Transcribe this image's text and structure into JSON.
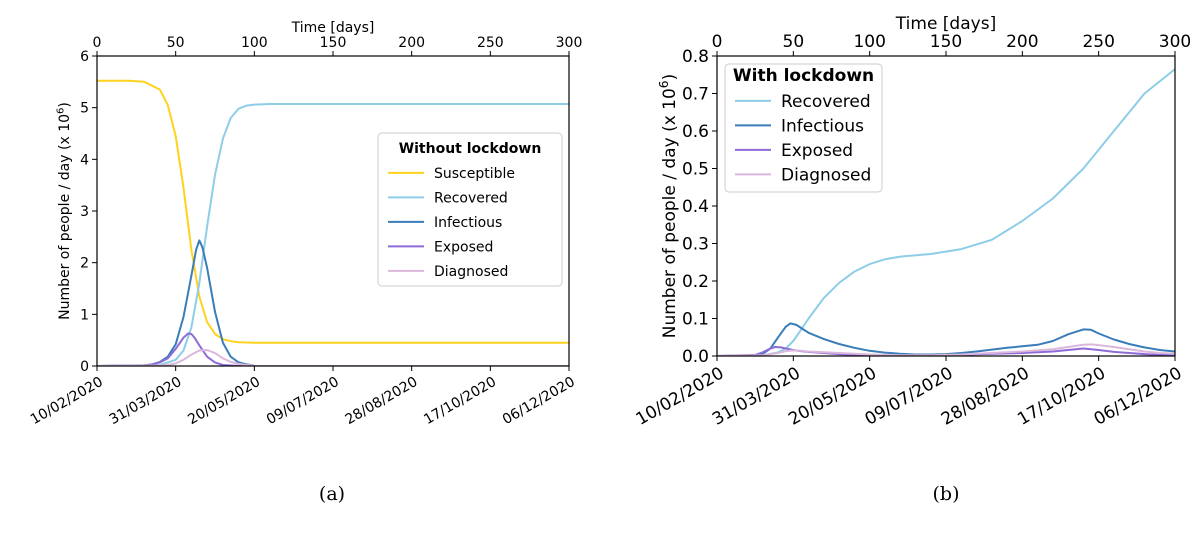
{
  "chart_data": [
    {
      "type": "line",
      "caption": "(a)",
      "top_xlabel": "Time [days]",
      "top_xticks": [
        0,
        50,
        100,
        150,
        200,
        250,
        300
      ],
      "xlim": [
        0,
        300
      ],
      "bottom_xticks": [
        {
          "day": 0,
          "label": "10/02/2020"
        },
        {
          "day": 50,
          "label": "31/03/2020"
        },
        {
          "day": 100,
          "label": "20/05/2020"
        },
        {
          "day": 150,
          "label": "09/07/2020"
        },
        {
          "day": 200,
          "label": "28/08/2020"
        },
        {
          "day": 250,
          "label": "17/10/2020"
        },
        {
          "day": 300,
          "label": "06/12/2020"
        }
      ],
      "ylabel": "Number of people / day (x 10",
      "ylabel_sup": "6",
      "ylabel_end": ")",
      "ylim": [
        0,
        6
      ],
      "yticks": [
        "0",
        "1",
        "2",
        "3",
        "4",
        "5",
        "6"
      ],
      "ytick_values": [
        0,
        1,
        2,
        3,
        4,
        5,
        6
      ],
      "legend": {
        "title": "Without lockdown",
        "placement": "center-right"
      },
      "series": [
        {
          "name": "Susceptible",
          "color": "#FFD21F",
          "x": [
            0,
            20,
            30,
            40,
            45,
            50,
            55,
            60,
            65,
            70,
            75,
            80,
            85,
            90,
            95,
            100,
            110,
            120,
            150,
            200,
            250,
            300
          ],
          "y": [
            5.52,
            5.52,
            5.5,
            5.35,
            5.05,
            4.45,
            3.45,
            2.25,
            1.35,
            0.85,
            0.62,
            0.52,
            0.48,
            0.46,
            0.455,
            0.45,
            0.45,
            0.45,
            0.45,
            0.45,
            0.45,
            0.45
          ]
        },
        {
          "name": "Recovered",
          "color": "#8ECDE8",
          "x": [
            0,
            40,
            50,
            55,
            60,
            65,
            70,
            75,
            80,
            85,
            90,
            95,
            100,
            110,
            120,
            150,
            200,
            250,
            300
          ],
          "y": [
            0,
            0.02,
            0.12,
            0.3,
            0.75,
            1.6,
            2.7,
            3.7,
            4.4,
            4.8,
            4.98,
            5.04,
            5.06,
            5.07,
            5.07,
            5.07,
            5.07,
            5.07,
            5.07
          ]
        },
        {
          "name": "Infectious",
          "color": "#3A7DB8",
          "x": [
            0,
            30,
            35,
            40,
            45,
            50,
            55,
            60,
            63,
            65,
            67,
            70,
            75,
            80,
            85,
            90,
            95,
            100,
            110,
            300
          ],
          "y": [
            0,
            0.01,
            0.03,
            0.08,
            0.18,
            0.42,
            0.95,
            1.75,
            2.25,
            2.43,
            2.3,
            1.9,
            1.05,
            0.45,
            0.18,
            0.07,
            0.03,
            0.01,
            0,
            0
          ]
        },
        {
          "name": "Exposed",
          "color": "#8E6BD9",
          "x": [
            0,
            30,
            35,
            40,
            45,
            50,
            55,
            58,
            60,
            62,
            65,
            70,
            75,
            80,
            85,
            90,
            100,
            300
          ],
          "y": [
            0,
            0.01,
            0.03,
            0.07,
            0.15,
            0.33,
            0.55,
            0.63,
            0.62,
            0.55,
            0.4,
            0.18,
            0.07,
            0.02,
            0.01,
            0,
            0,
            0
          ]
        },
        {
          "name": "Diagnosed",
          "color": "#DCB7DC",
          "x": [
            0,
            40,
            45,
            50,
            55,
            60,
            65,
            70,
            75,
            80,
            85,
            90,
            95,
            100,
            110,
            300
          ],
          "y": [
            0,
            0.01,
            0.02,
            0.05,
            0.12,
            0.22,
            0.3,
            0.31,
            0.25,
            0.15,
            0.08,
            0.04,
            0.02,
            0.01,
            0,
            0
          ]
        }
      ]
    },
    {
      "type": "line",
      "caption": "(b)",
      "top_xlabel": "Time [days]",
      "top_xticks": [
        0,
        50,
        100,
        150,
        200,
        250,
        300
      ],
      "xlim": [
        0,
        300
      ],
      "bottom_xticks": [
        {
          "day": 0,
          "label": "10/02/2020"
        },
        {
          "day": 50,
          "label": "31/03/2020"
        },
        {
          "day": 100,
          "label": "20/05/2020"
        },
        {
          "day": 150,
          "label": "09/07/2020"
        },
        {
          "day": 200,
          "label": "28/08/2020"
        },
        {
          "day": 250,
          "label": "17/10/2020"
        },
        {
          "day": 300,
          "label": "06/12/2020"
        }
      ],
      "ylabel": "Number of people / day (x 10",
      "ylabel_sup": "6",
      "ylabel_end": ")",
      "ylim": [
        0,
        0.8
      ],
      "yticks": [
        "0.0",
        "0.1",
        "0.2",
        "0.3",
        "0.4",
        "0.5",
        "0.6",
        "0.7",
        "0.8"
      ],
      "ytick_values": [
        0,
        0.1,
        0.2,
        0.3,
        0.4,
        0.5,
        0.6,
        0.7,
        0.8
      ],
      "legend": {
        "title": "With lockdown",
        "placement": "upper-left"
      },
      "series": [
        {
          "name": "Recovered",
          "color": "#8ECDE8",
          "x": [
            0,
            30,
            40,
            45,
            50,
            55,
            60,
            70,
            80,
            90,
            100,
            110,
            120,
            140,
            160,
            180,
            200,
            220,
            240,
            260,
            280,
            300
          ],
          "y": [
            0,
            0.002,
            0.01,
            0.02,
            0.04,
            0.07,
            0.1,
            0.155,
            0.195,
            0.225,
            0.245,
            0.258,
            0.265,
            0.272,
            0.285,
            0.31,
            0.36,
            0.42,
            0.5,
            0.6,
            0.7,
            0.765
          ]
        },
        {
          "name": "Infectious",
          "color": "#3A7DB8",
          "x": [
            0,
            25,
            30,
            35,
            40,
            45,
            48,
            52,
            55,
            60,
            70,
            80,
            90,
            100,
            110,
            120,
            130,
            140,
            150,
            160,
            170,
            180,
            190,
            200,
            210,
            220,
            230,
            240,
            245,
            250,
            260,
            270,
            280,
            290,
            300
          ],
          "y": [
            0,
            0.001,
            0.006,
            0.02,
            0.05,
            0.078,
            0.087,
            0.083,
            0.075,
            0.062,
            0.045,
            0.032,
            0.022,
            0.014,
            0.009,
            0.006,
            0.004,
            0.004,
            0.005,
            0.008,
            0.012,
            0.017,
            0.022,
            0.026,
            0.03,
            0.04,
            0.058,
            0.071,
            0.07,
            0.06,
            0.044,
            0.032,
            0.023,
            0.016,
            0.012
          ]
        },
        {
          "name": "Exposed",
          "color": "#8E6BD9",
          "x": [
            0,
            25,
            30,
            35,
            38,
            42,
            45,
            50,
            55,
            60,
            70,
            80,
            90,
            100,
            120,
            140,
            160,
            180,
            200,
            220,
            230,
            240,
            250,
            260,
            270,
            280,
            290,
            300
          ],
          "y": [
            0,
            0.003,
            0.01,
            0.02,
            0.024,
            0.023,
            0.02,
            0.016,
            0.013,
            0.011,
            0.008,
            0.005,
            0.003,
            0.002,
            0.001,
            0.001,
            0.003,
            0.006,
            0.008,
            0.012,
            0.016,
            0.02,
            0.016,
            0.011,
            0.008,
            0.005,
            0.003,
            0.002
          ]
        },
        {
          "name": "Diagnosed",
          "color": "#DCB7DC",
          "x": [
            0,
            30,
            40,
            45,
            50,
            55,
            60,
            70,
            80,
            90,
            100,
            120,
            140,
            160,
            180,
            200,
            220,
            230,
            240,
            245,
            250,
            260,
            270,
            280,
            290,
            300
          ],
          "y": [
            0,
            0.002,
            0.008,
            0.013,
            0.015,
            0.014,
            0.012,
            0.01,
            0.008,
            0.006,
            0.004,
            0.002,
            0.002,
            0.004,
            0.008,
            0.012,
            0.018,
            0.024,
            0.03,
            0.031,
            0.029,
            0.024,
            0.018,
            0.012,
            0.008,
            0.006
          ]
        }
      ]
    }
  ]
}
